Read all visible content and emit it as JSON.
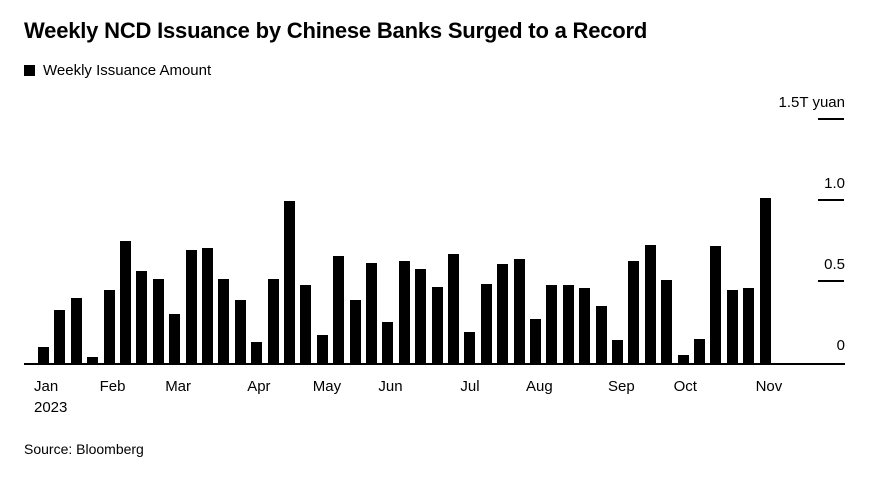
{
  "header": {
    "title": "Weekly NCD Issuance by Chinese Banks Surged to a Record",
    "legend": {
      "label": "Weekly Issuance Amount",
      "swatch_color": "#000000"
    }
  },
  "footer": {
    "source": "Source: Bloomberg"
  },
  "chart_data": {
    "type": "bar",
    "title": "Weekly NCD Issuance by Chinese Banks Surged to a Record",
    "series_name": "Weekly Issuance Amount",
    "unit": "T yuan",
    "bar_color": "#000000",
    "ylim": [
      0,
      1.5
    ],
    "grid": "right-tick-dashes",
    "legend_position": "top-left",
    "yticks": [
      {
        "value": 1.5,
        "label": "1.5T yuan"
      },
      {
        "value": 1.0,
        "label": "1.0"
      },
      {
        "value": 0.5,
        "label": "0.5"
      },
      {
        "value": 0,
        "label": "0"
      }
    ],
    "months": [
      {
        "label": "Jan",
        "sublabel": "2023",
        "values": [
          0.1,
          0.33,
          0.4,
          0.04
        ]
      },
      {
        "label": "Feb",
        "values": [
          0.45,
          0.75,
          0.57,
          0.52
        ]
      },
      {
        "label": "Mar",
        "values": [
          0.3,
          0.7,
          0.71,
          0.52,
          0.39
        ]
      },
      {
        "label": "Apr",
        "values": [
          0.13,
          0.52,
          1.0,
          0.48
        ]
      },
      {
        "label": "May",
        "values": [
          0.17,
          0.66,
          0.39,
          0.62
        ]
      },
      {
        "label": "Jun",
        "values": [
          0.25,
          0.63,
          0.58,
          0.47,
          0.67
        ]
      },
      {
        "label": "Jul",
        "values": [
          0.19,
          0.49,
          0.61,
          0.64
        ]
      },
      {
        "label": "Aug",
        "values": [
          0.27,
          0.48,
          0.48,
          0.46,
          0.35
        ]
      },
      {
        "label": "Sep",
        "values": [
          0.14,
          0.63,
          0.73,
          0.51
        ]
      },
      {
        "label": "Oct",
        "values": [
          0.05,
          0.15,
          0.72,
          0.45,
          0.46
        ]
      },
      {
        "label": "Nov",
        "values": [
          1.02
        ]
      }
    ]
  }
}
